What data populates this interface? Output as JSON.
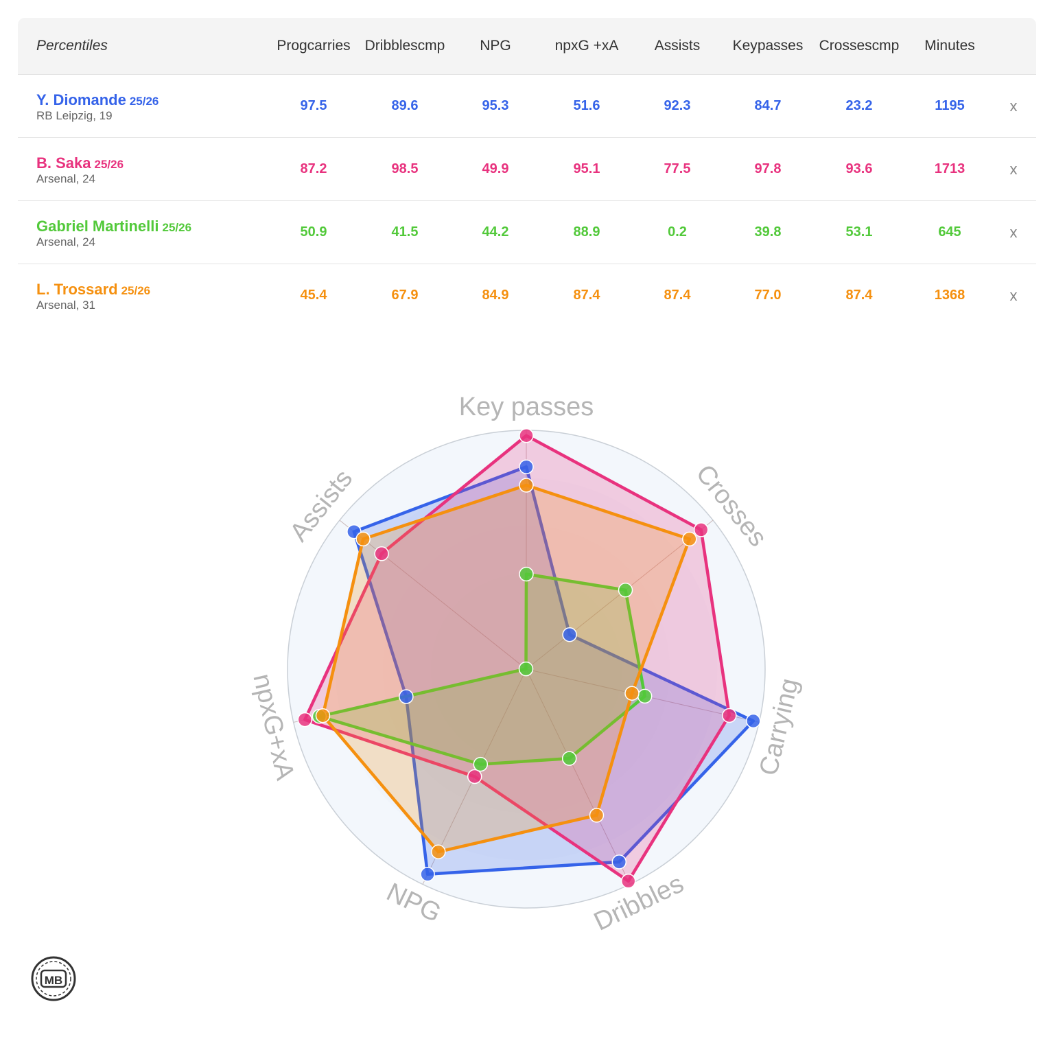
{
  "table": {
    "header_label": "Percentiles",
    "columns": [
      {
        "line1": "Prog",
        "line2": "carries"
      },
      {
        "line1": "Dribbles",
        "line2": "cmp"
      },
      {
        "line1": "NPG",
        "line2": ""
      },
      {
        "line1": "npxG +xA",
        "line2": ""
      },
      {
        "line1": "Assists",
        "line2": ""
      },
      {
        "line1": "Key",
        "line2": "passes"
      },
      {
        "line1": "Crosses",
        "line2": "cmp"
      },
      {
        "line1": "Minutes",
        "line2": ""
      }
    ],
    "remove_label": "x",
    "players": [
      {
        "name": "Y. Diomande",
        "season": "25/26",
        "team": "RB Leipzig, 19",
        "color": "#3563e9",
        "values": [
          "97.5",
          "89.6",
          "95.3",
          "51.6",
          "92.3",
          "84.7",
          "23.2",
          "1195"
        ]
      },
      {
        "name": "B. Saka",
        "season": "25/26",
        "team": "Arsenal, 24",
        "color": "#e8327e",
        "values": [
          "87.2",
          "98.5",
          "49.9",
          "95.1",
          "77.5",
          "97.8",
          "93.6",
          "1713"
        ]
      },
      {
        "name": "Gabriel Martinelli",
        "season": "25/26",
        "team": "Arsenal, 24",
        "color": "#52c93a",
        "values": [
          "50.9",
          "41.5",
          "44.2",
          "88.9",
          "0.2",
          "39.8",
          "53.1",
          "645"
        ]
      },
      {
        "name": "L. Trossard",
        "season": "25/26",
        "team": "Arsenal, 31",
        "color": "#f5900f",
        "values": [
          "45.4",
          "67.9",
          "84.9",
          "87.4",
          "87.4",
          "77.0",
          "87.4",
          "1368"
        ]
      }
    ]
  },
  "chart_data": {
    "type": "radar",
    "axes": [
      "Key passes",
      "Crosses",
      "Carrying",
      "Dribbles",
      "NPG",
      "npxG+xA",
      "Assists"
    ],
    "range": [
      0,
      100
    ],
    "series": [
      {
        "name": "Y. Diomande",
        "color": "#3563e9",
        "values": [
          84.7,
          23.2,
          97.5,
          89.6,
          95.3,
          51.6,
          92.3
        ]
      },
      {
        "name": "B. Saka",
        "color": "#e8327e",
        "values": [
          97.8,
          93.6,
          87.2,
          98.5,
          49.9,
          95.1,
          77.5
        ]
      },
      {
        "name": "Gabriel Martinelli",
        "color": "#52c93a",
        "values": [
          39.8,
          53.1,
          50.9,
          41.5,
          44.2,
          88.9,
          0.2
        ]
      },
      {
        "name": "L. Trossard",
        "color": "#f5900f",
        "values": [
          77.0,
          87.4,
          45.4,
          67.9,
          84.9,
          87.4,
          87.4
        ]
      }
    ]
  },
  "logo": {
    "text": "MB"
  }
}
